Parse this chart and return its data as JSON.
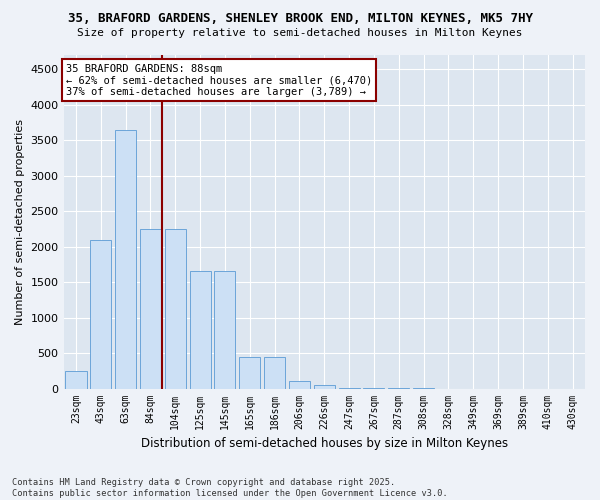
{
  "title_line1": "35, BRAFORD GARDENS, SHENLEY BROOK END, MILTON KEYNES, MK5 7HY",
  "title_line2": "Size of property relative to semi-detached houses in Milton Keynes",
  "xlabel": "Distribution of semi-detached houses by size in Milton Keynes",
  "ylabel": "Number of semi-detached properties",
  "categories": [
    "23sqm",
    "43sqm",
    "63sqm",
    "84sqm",
    "104sqm",
    "125sqm",
    "145sqm",
    "165sqm",
    "186sqm",
    "206sqm",
    "226sqm",
    "247sqm",
    "267sqm",
    "287sqm",
    "308sqm",
    "328sqm",
    "349sqm",
    "369sqm",
    "389sqm",
    "410sqm",
    "430sqm"
  ],
  "values": [
    250,
    2100,
    3650,
    2250,
    2250,
    1650,
    1650,
    450,
    450,
    100,
    50,
    10,
    5,
    2,
    1,
    0,
    0,
    0,
    0,
    0,
    0
  ],
  "bar_color": "#cce0f5",
  "bar_edge_color": "#5b9bd5",
  "red_line_color": "#8b0000",
  "annotation_title": "35 BRAFORD GARDENS: 88sqm",
  "annotation_line1": "← 62% of semi-detached houses are smaller (6,470)",
  "annotation_line2": "37% of semi-detached houses are larger (3,789) →",
  "ylim": [
    0,
    4700
  ],
  "yticks": [
    0,
    500,
    1000,
    1500,
    2000,
    2500,
    3000,
    3500,
    4000,
    4500
  ],
  "footnote_line1": "Contains HM Land Registry data © Crown copyright and database right 2025.",
  "footnote_line2": "Contains public sector information licensed under the Open Government Licence v3.0.",
  "bg_color": "#eef2f8",
  "plot_bg_color": "#dde6f0"
}
